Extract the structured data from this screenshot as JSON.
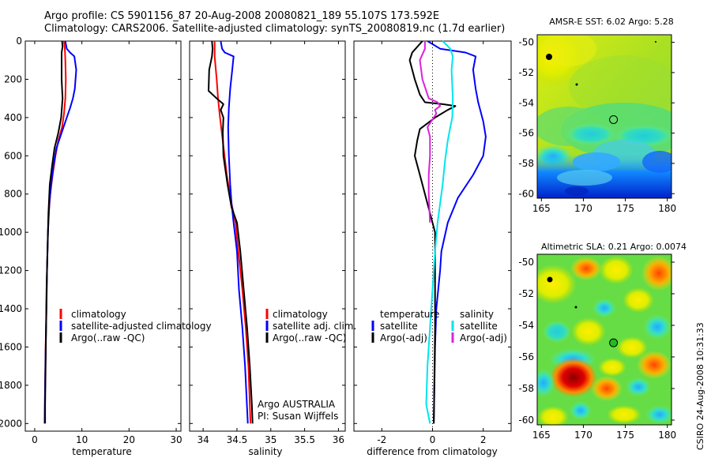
{
  "header": {
    "line1": "Argo profile: CS 5901156_87 20-Aug-2008 20080821_189 55.107S 173.592E",
    "line2": "Climatology: CARS2006. Satellite-adjusted climatology: synTS_20080819.nc (1.7d earlier)"
  },
  "side_note": "CSIRO 24-Aug-2008 10:31:33",
  "colors": {
    "climatology": "#ff0000",
    "satellite": "#0000ff",
    "argo": "#000000",
    "salinity_satellite": "#00e5ee",
    "salinity_argo": "#dd22dd"
  },
  "chart_data": [
    {
      "type": "line",
      "id": "temperature",
      "xlabel": "temperature",
      "ylabel": "",
      "xlim": [
        -2,
        31
      ],
      "ylim": [
        2040,
        0
      ],
      "xticks": [
        0,
        10,
        20,
        30
      ],
      "yticks": [
        0,
        200,
        400,
        600,
        800,
        1000,
        1200,
        1400,
        1600,
        1800,
        2000
      ],
      "legend": [
        "climatology",
        "satellite-adjusted climatology",
        "Argo(..raw -QC)"
      ],
      "series": [
        {
          "name": "climatology",
          "color": "#ff0000",
          "points": [
            [
              6.2,
              0
            ],
            [
              6.4,
              40
            ],
            [
              6.5,
              100
            ],
            [
              6.6,
              200
            ],
            [
              6.5,
              300
            ],
            [
              6.2,
              380
            ],
            [
              5.8,
              450
            ],
            [
              5.0,
              520
            ],
            [
              4.4,
              600
            ],
            [
              3.8,
              700
            ],
            [
              3.3,
              800
            ],
            [
              3.0,
              900
            ],
            [
              2.8,
              1000
            ],
            [
              2.6,
              1200
            ],
            [
              2.5,
              1400
            ],
            [
              2.3,
              1600
            ],
            [
              2.2,
              1800
            ],
            [
              2.1,
              2000
            ]
          ]
        },
        {
          "name": "satellite-adjusted climatology",
          "color": "#0000ff",
          "points": [
            [
              6.5,
              0
            ],
            [
              6.8,
              40
            ],
            [
              7.5,
              60
            ],
            [
              8.4,
              80
            ],
            [
              8.8,
              150
            ],
            [
              8.5,
              250
            ],
            [
              8.1,
              300
            ],
            [
              7.5,
              350
            ],
            [
              6.8,
              400
            ],
            [
              5.7,
              480
            ],
            [
              4.6,
              560
            ],
            [
              4.0,
              650
            ],
            [
              3.5,
              750
            ],
            [
              3.1,
              850
            ],
            [
              2.8,
              1000
            ],
            [
              2.6,
              1200
            ],
            [
              2.4,
              1500
            ],
            [
              2.2,
              1800
            ],
            [
              2.1,
              2000
            ]
          ]
        },
        {
          "name": "Argo(..raw -QC)",
          "color": "#000000",
          "points": [
            [
              5.8,
              0
            ],
            [
              5.9,
              30
            ],
            [
              5.7,
              60
            ],
            [
              5.7,
              200
            ],
            [
              5.9,
              300
            ],
            [
              5.6,
              400
            ],
            [
              5.0,
              480
            ],
            [
              4.2,
              560
            ],
            [
              3.7,
              650
            ],
            [
              3.2,
              750
            ],
            [
              2.9,
              900
            ],
            [
              2.7,
              1100
            ],
            [
              2.5,
              1300
            ],
            [
              2.4,
              1500
            ],
            [
              2.3,
              1700
            ],
            [
              2.2,
              1900
            ],
            [
              2.2,
              2000
            ]
          ]
        }
      ]
    },
    {
      "type": "line",
      "id": "salinity",
      "xlabel": "salinity",
      "ylabel": "",
      "xlim": [
        33.8,
        36.1
      ],
      "ylim": [
        2040,
        0
      ],
      "xticks": [
        34,
        34.5,
        35,
        35.5,
        36
      ],
      "tick_labels": [
        "34",
        "34.5",
        "35",
        "35.5",
        "36"
      ],
      "yticks": [
        0,
        200,
        400,
        600,
        800,
        1000,
        1200,
        1400,
        1600,
        1800,
        2000
      ],
      "legend": [
        "climatology",
        "satellite adj. clim.",
        "Argo(..raw -QC)"
      ],
      "series": [
        {
          "name": "climatology",
          "color": "#ff0000",
          "points": [
            [
              34.17,
              0
            ],
            [
              34.17,
              80
            ],
            [
              34.2,
              200
            ],
            [
              34.22,
              300
            ],
            [
              34.25,
              400
            ],
            [
              34.3,
              550
            ],
            [
              34.35,
              700
            ],
            [
              34.42,
              850
            ],
            [
              34.48,
              950
            ],
            [
              34.52,
              1100
            ],
            [
              34.58,
              1300
            ],
            [
              34.63,
              1500
            ],
            [
              34.67,
              1700
            ],
            [
              34.7,
              2000
            ]
          ]
        },
        {
          "name": "satellite adj. clim.",
          "color": "#0000ff",
          "points": [
            [
              34.26,
              0
            ],
            [
              34.28,
              40
            ],
            [
              34.32,
              60
            ],
            [
              34.45,
              80
            ],
            [
              34.43,
              150
            ],
            [
              34.4,
              250
            ],
            [
              34.38,
              350
            ],
            [
              34.37,
              450
            ],
            [
              34.38,
              600
            ],
            [
              34.4,
              750
            ],
            [
              34.42,
              850
            ],
            [
              34.45,
              950
            ],
            [
              34.5,
              1100
            ],
            [
              34.53,
              1300
            ],
            [
              34.58,
              1500
            ],
            [
              34.62,
              1700
            ],
            [
              34.66,
              2000
            ]
          ]
        },
        {
          "name": "Argo(..raw -QC)",
          "color": "#000000",
          "points": [
            [
              34.13,
              0
            ],
            [
              34.14,
              40
            ],
            [
              34.13,
              80
            ],
            [
              34.09,
              150
            ],
            [
              34.08,
              260
            ],
            [
              34.2,
              300
            ],
            [
              34.3,
              330
            ],
            [
              34.26,
              360
            ],
            [
              34.3,
              400
            ],
            [
              34.29,
              480
            ],
            [
              34.3,
              600
            ],
            [
              34.36,
              750
            ],
            [
              34.42,
              870
            ],
            [
              34.5,
              950
            ],
            [
              34.55,
              1100
            ],
            [
              34.6,
              1300
            ],
            [
              34.65,
              1500
            ],
            [
              34.69,
              1700
            ],
            [
              34.72,
              1900
            ],
            [
              34.73,
              2000
            ]
          ]
        }
      ]
    },
    {
      "type": "line",
      "id": "difference",
      "xlabel": "difference from climatology",
      "ylabel": "",
      "xlim": [
        -3.1,
        3.1
      ],
      "ylim": [
        2040,
        0
      ],
      "xticks": [
        -2,
        0,
        2
      ],
      "tick_labels": [
        "-2",
        "0",
        "2"
      ],
      "yticks": [
        0,
        200,
        400,
        600,
        800,
        1000,
        1200,
        1400,
        1600,
        1800,
        2000
      ],
      "legend_headers": [
        "temperature",
        "salinity"
      ],
      "legend": [
        "satellite",
        "Argo(-adj)",
        "satellite",
        "Argo(-adj)"
      ],
      "zero_line": true,
      "series": [
        {
          "name": "temperature satellite",
          "color": "#0000ff",
          "points": [
            [
              -0.2,
              0
            ],
            [
              0.3,
              40
            ],
            [
              1.3,
              60
            ],
            [
              1.7,
              80
            ],
            [
              1.6,
              150
            ],
            [
              1.7,
              250
            ],
            [
              1.8,
              320
            ],
            [
              2.0,
              420
            ],
            [
              2.1,
              500
            ],
            [
              2.0,
              600
            ],
            [
              1.6,
              700
            ],
            [
              1.0,
              820
            ],
            [
              0.6,
              950
            ],
            [
              0.35,
              1100
            ],
            [
              0.3,
              1200
            ],
            [
              0.15,
              1400
            ],
            [
              0.1,
              1600
            ],
            [
              0.05,
              2000
            ]
          ]
        },
        {
          "name": "temperature Argo(-adj)",
          "color": "#000000",
          "points": [
            [
              -0.4,
              0
            ],
            [
              -0.6,
              30
            ],
            [
              -0.8,
              60
            ],
            [
              -0.9,
              100
            ],
            [
              -0.7,
              200
            ],
            [
              -0.5,
              280
            ],
            [
              -0.3,
              320
            ],
            [
              0.4,
              330
            ],
            [
              0.9,
              340
            ],
            [
              0.6,
              360
            ],
            [
              0.1,
              400
            ],
            [
              -0.5,
              460
            ],
            [
              -0.6,
              520
            ],
            [
              -0.7,
              600
            ],
            [
              -0.5,
              700
            ],
            [
              -0.2,
              850
            ],
            [
              0.1,
              1000
            ],
            [
              0.1,
              1200
            ],
            [
              0.1,
              1500
            ],
            [
              0.05,
              2000
            ]
          ]
        },
        {
          "name": "salinity satellite",
          "color": "#00e5ee",
          "points": [
            [
              0.4,
              0
            ],
            [
              0.7,
              40
            ],
            [
              0.8,
              80
            ],
            [
              0.75,
              150
            ],
            [
              0.8,
              300
            ],
            [
              0.78,
              400
            ],
            [
              0.7,
              450
            ],
            [
              0.6,
              520
            ],
            [
              0.5,
              620
            ],
            [
              0.4,
              750
            ],
            [
              0.3,
              850
            ],
            [
              0.2,
              950
            ],
            [
              0.1,
              1100
            ],
            [
              0.0,
              1300
            ],
            [
              -0.1,
              1500
            ],
            [
              -0.2,
              1700
            ],
            [
              -0.25,
              1900
            ],
            [
              -0.1,
              2000
            ]
          ]
        },
        {
          "name": "salinity Argo(-adj)",
          "color": "#dd22dd",
          "points": [
            [
              -0.3,
              0
            ],
            [
              -0.3,
              40
            ],
            [
              -0.5,
              100
            ],
            [
              -0.4,
              200
            ],
            [
              -0.15,
              300
            ],
            [
              0.2,
              320
            ],
            [
              0.3,
              340
            ],
            [
              0.1,
              360
            ],
            [
              0.15,
              380
            ],
            [
              -0.05,
              420
            ],
            [
              -0.2,
              450
            ],
            [
              -0.1,
              500
            ],
            [
              -0.1,
              600
            ],
            [
              -0.15,
              700
            ],
            [
              -0.15,
              800
            ],
            [
              -0.1,
              950
            ]
          ]
        }
      ]
    },
    {
      "type": "heatmap",
      "id": "sst",
      "title": "AMSR-E SST: 6.02  Argo: 5.28",
      "xlim": [
        164.5,
        180.5
      ],
      "ylim": [
        -60.3,
        -49.5
      ],
      "xticks": [
        165,
        170,
        175,
        180
      ],
      "yticks": [
        -50,
        -52,
        -54,
        -56,
        -58,
        -60
      ],
      "marker": {
        "lon": 173.59,
        "lat": -55.107
      }
    },
    {
      "type": "heatmap",
      "id": "sla",
      "title": "Altimetric SLA: 0.21  Argo: 0.0074",
      "xlim": [
        164.5,
        180.5
      ],
      "ylim": [
        -60.3,
        -49.5
      ],
      "xticks": [
        165,
        170,
        175,
        180
      ],
      "yticks": [
        -50,
        -52,
        -54,
        -56,
        -58,
        -60
      ],
      "marker": {
        "lon": 173.59,
        "lat": -55.107
      }
    }
  ],
  "footer_labels": {
    "argo": "Argo AUSTRALIA",
    "pi": "PI: Susan Wijffels"
  }
}
